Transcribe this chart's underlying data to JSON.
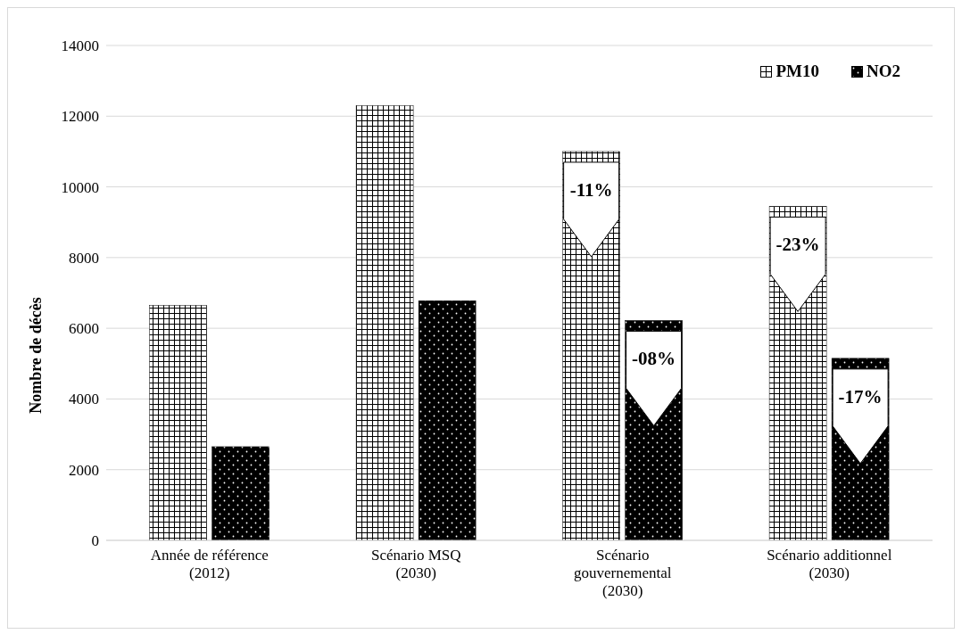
{
  "chart_data": {
    "type": "bar",
    "ylabel": "Nombre de décès",
    "categories": [
      "Année de référence (2012)",
      "Scénario MSQ (2030)",
      "Scénario gouvernemental (2030)",
      "Scénario additionnel (2030)"
    ],
    "series": [
      {
        "name": "PM10",
        "color": "#000000",
        "values": [
          6650,
          12300,
          11000,
          9450
        ]
      },
      {
        "name": "NO2",
        "color": "#000000",
        "values": [
          2650,
          6780,
          6220,
          5150
        ]
      }
    ],
    "ylim": [
      0,
      14000
    ],
    "yticks": [
      0,
      2000,
      4000,
      6000,
      8000,
      10000,
      12000,
      14000
    ],
    "grid": "y",
    "legend": "top right",
    "annotations": [
      {
        "text": "-11%",
        "x": "Scénario gouvernemental (2030)",
        "y": 11000
      },
      {
        "text": "-08%",
        "x": "Scénario gouvernemental (2030)",
        "y": 6220
      },
      {
        "text": "-23%",
        "x": "Scénario additionnel (2030)",
        "y": 9450
      },
      {
        "text": "-17%",
        "x": "Scénario additionnel (2030)",
        "y": 5150
      }
    ]
  }
}
